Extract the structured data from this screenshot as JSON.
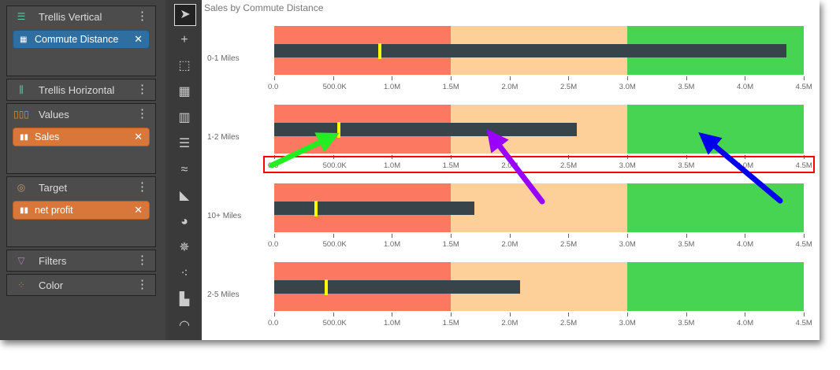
{
  "panels": {
    "trellis_vertical": {
      "label": "Trellis Vertical",
      "field": "Commute Distance"
    },
    "trellis_horizontal": {
      "label": "Trellis Horizontal"
    },
    "values": {
      "label": "Values",
      "field": "Sales"
    },
    "target": {
      "label": "Target",
      "field": "net profit"
    },
    "filters": {
      "label": "Filters"
    },
    "color": {
      "label": "Color"
    }
  },
  "tools": [
    "select-arrow-icon",
    "add-cursor-icon",
    "lasso-select-icon",
    "grid-icon",
    "column-chart-icon",
    "bar-chart-icon",
    "line-chart-icon",
    "area-chart-icon",
    "pie-chart-icon",
    "radar-chart-icon",
    "scatter-chart-icon",
    "treemap-icon",
    "gauge-icon"
  ],
  "chart_data": {
    "type": "bullet",
    "title": "Sales by Commute Distance",
    "categories": [
      "0-1 Miles",
      "1-2 Miles",
      "10+ Miles",
      "2-5 Miles"
    ],
    "values": [
      4350000,
      2570000,
      1700000,
      2090000
    ],
    "targets": [
      900000,
      550000,
      355000,
      440000
    ],
    "ranges": [
      [
        0,
        1500000
      ],
      [
        1500000,
        3000000
      ],
      [
        3000000,
        4500000
      ]
    ],
    "range_colors": [
      "#fc7860",
      "#fdd09a",
      "#48d453"
    ],
    "bar_color": "#37454a",
    "target_color": "#ffff00",
    "xlim": [
      0,
      4500000
    ],
    "tick_labels": [
      "0.0",
      "500.0K",
      "1.0M",
      "1.5M",
      "2.0M",
      "2.5M",
      "3.0M",
      "3.5M",
      "4.0M",
      "4.5M"
    ]
  },
  "annotations": {
    "highlight_color": "#ff0000",
    "arrow_colors": [
      "#22ee22",
      "#9900ff",
      "#0000ee"
    ]
  }
}
